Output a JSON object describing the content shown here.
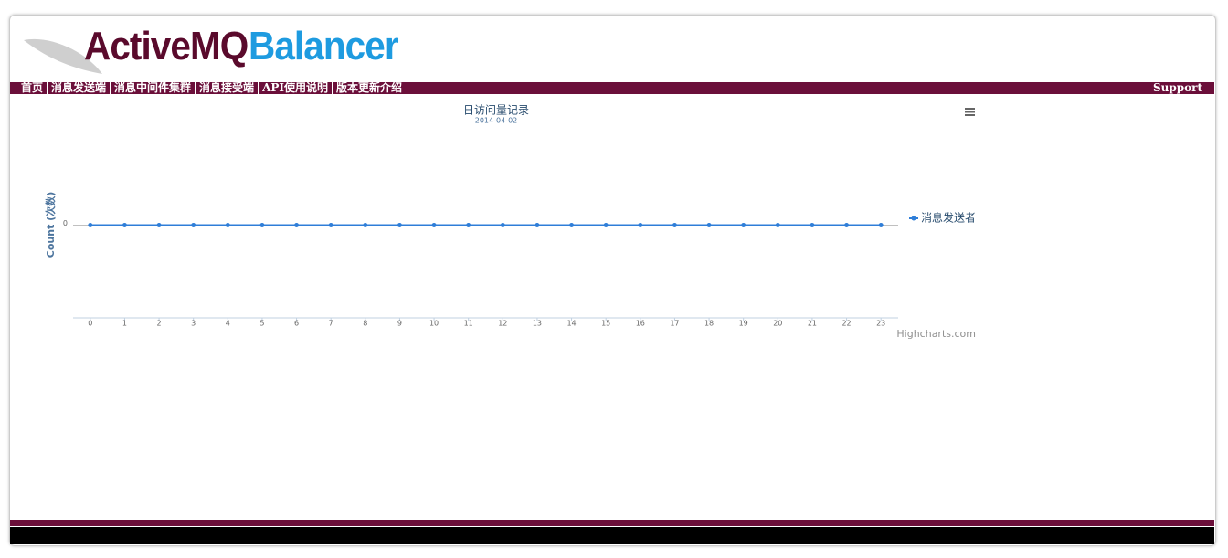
{
  "header": {
    "logo_part1": "ActiveMQ",
    "logo_part2": "Balancer"
  },
  "nav": {
    "items": [
      "首页",
      "消息发送端",
      "消息中间件集群",
      "消息接受端",
      "API使用说明",
      "版本更新介绍"
    ],
    "support": "Support"
  },
  "chart_data": {
    "type": "line",
    "title": "日访问量记录",
    "subtitle": "2014-04-02",
    "y_label": "Count (次数)",
    "x": [
      0,
      1,
      2,
      3,
      4,
      5,
      6,
      7,
      8,
      9,
      10,
      11,
      12,
      13,
      14,
      15,
      16,
      17,
      18,
      19,
      20,
      21,
      22,
      23
    ],
    "series": [
      {
        "name": "消息发送者",
        "color": "#2f7ed8",
        "values": [
          0,
          0,
          0,
          0,
          0,
          0,
          0,
          0,
          0,
          0,
          0,
          0,
          0,
          0,
          0,
          0,
          0,
          0,
          0,
          0,
          0,
          0,
          0,
          0
        ]
      }
    ],
    "xlim": [
      -0.5,
      23.5
    ],
    "xticks": [
      0,
      1,
      2,
      3,
      4,
      5,
      6,
      7,
      8,
      9,
      10,
      11,
      12,
      13,
      14,
      15,
      16,
      17,
      18,
      19,
      20,
      21,
      22,
      23
    ],
    "ylim": [
      -1,
      1
    ],
    "yticks": [
      0
    ],
    "grid": true,
    "legend": "right",
    "credits": "Highcharts.com"
  }
}
